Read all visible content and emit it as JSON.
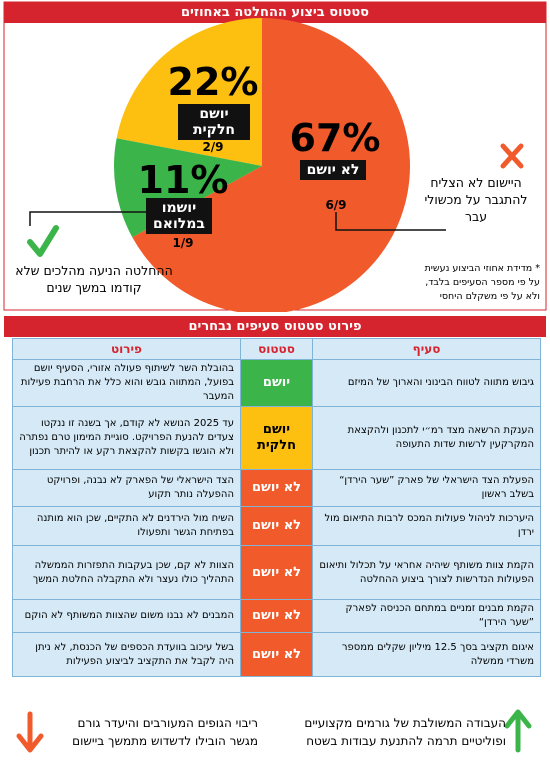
{
  "chart_data": {
    "type": "pie",
    "title": "סטטוס ביצוע ההחלטה באחוזים",
    "categories": [
      "לא יושם",
      "יושמו במלואם",
      "יושם חלקית"
    ],
    "values": [
      67,
      11,
      22
    ],
    "value_labels": [
      "67%",
      "11%",
      "22%"
    ],
    "fractions": [
      "6/9",
      "1/9",
      "2/9"
    ],
    "colors": [
      "#f15a2b",
      "#3bb54a",
      "#fdc010"
    ],
    "annotations": [
      "היישום לא הצליח להתגבר על מכשולי עבר",
      "ההחלטה הניעה מהלכים שלא קודמו במשך שנים",
      "* מדידת אחוזי הביצוע נעשית על פי מספר הסעיפים בלבד, ולא על פי משקלם היחסי"
    ]
  },
  "table": {
    "title": "פירוט סטטוס סעיפים נבחרים",
    "columns": [
      "סעיף",
      "סטטוס",
      "פירוט"
    ],
    "rows": [
      [
        "גיבוש מתווה לטווח הבינוני והארוך של המיזם",
        "יושם",
        "בהובלת השר לשיתוף פעולה אזורי, הסעיף יושם בפועל, המתווה גובש והוא כלל את הרחבת פעילות המעבר"
      ],
      [
        "הענקת הרשאה מצד רמ״י לתכנון ולהקצאת המקרקעין לרשות שדות התעופה",
        "יושם חלקית",
        "עד 2025 הנושא לא קודם, אך בשנה זו ננקטו צעדים להנעת הפרויקט. סוגיית המימון טרם נפתרה ולא הוגשו בקשות להקצאת רקע או להיתר תכנון"
      ],
      [
        "הפעלת הצד הישראלי של פארק ”שער הירדן“ בשלב ראשון",
        "לא יושם",
        "הצד הישראלי של הפארק לא נבנה, ופרויקט ההפעלה נותר תקוע"
      ],
      [
        "היערכות לניהול פעולות המכס לרבות התיאום מול ירדן",
        "לא יושם",
        "השיח מול הירדנים לא התקיים, שכן הוא מותנה בפתיחת הגשר ותפעולו"
      ],
      [
        "הקמת צוות משותף שיהיה אחראי על תכלול ותיאום הפעולות הנדרשות לצורך ביצוע ההחלטה",
        "לא יושם",
        "הצוות לא קם, שכן בעקבות התפזרות הממשלה התהליך כולו נעצר ולא התקבלה החלטת המשך"
      ],
      [
        "הקמת מבנים זמניים במתחם הכניסה לפארק ”שער הירדן“",
        "לא יושם",
        "המבנים לא נבנו משום שהצוות המשותף לא הוקם"
      ],
      [
        "איגום תקציב בסך 12.5 מיליון שקלים ממספר משרדי ממשלה",
        "לא יושם",
        "בשל עיכוב בוועדת הכספים של הכנסת, לא ניתן היה לקבל את התקציב לביצוע הפעילות"
      ]
    ]
  },
  "footer": {
    "positive": "העבודה המשולבת של גורמים מקצועיים ופוליטיים תרמה להתנעת עבודות בשטח",
    "negative": "ריבוי הגופים המעורבים והיעדר גורם מגשר הובילו לדשדוש מתמשך ביישום"
  }
}
